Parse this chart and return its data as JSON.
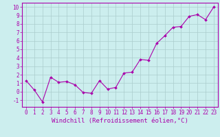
{
  "x": [
    0,
    1,
    2,
    3,
    4,
    5,
    6,
    7,
    8,
    9,
    10,
    11,
    12,
    13,
    14,
    15,
    16,
    17,
    18,
    19,
    20,
    21,
    22,
    23
  ],
  "y": [
    1.3,
    0.2,
    -1.2,
    1.7,
    1.1,
    1.2,
    0.8,
    -0.1,
    -0.2,
    1.3,
    0.3,
    0.5,
    2.2,
    2.3,
    3.8,
    3.7,
    5.7,
    6.6,
    7.6,
    7.7,
    8.9,
    9.1,
    8.5,
    10.0
  ],
  "line_color": "#aa00aa",
  "marker": "D",
  "marker_size": 2,
  "line_width": 0.8,
  "bg_color": "#cceeee",
  "grid_color": "#aacccc",
  "xlabel": "Windchill (Refroidissement éolien,°C)",
  "xlabel_color": "#aa00aa",
  "ylim": [
    -1.8,
    10.5
  ],
  "xlim": [
    -0.5,
    23.5
  ],
  "yticks": [
    -1,
    0,
    1,
    2,
    3,
    4,
    5,
    6,
    7,
    8,
    9,
    10
  ],
  "xticks": [
    0,
    1,
    2,
    3,
    4,
    5,
    6,
    7,
    8,
    9,
    10,
    11,
    12,
    13,
    14,
    15,
    16,
    17,
    18,
    19,
    20,
    21,
    22,
    23
  ],
  "tick_label_size": 5.5,
  "xlabel_size": 6.5,
  "axis_color": "#aa00aa",
  "spine_color": "#aa00aa"
}
